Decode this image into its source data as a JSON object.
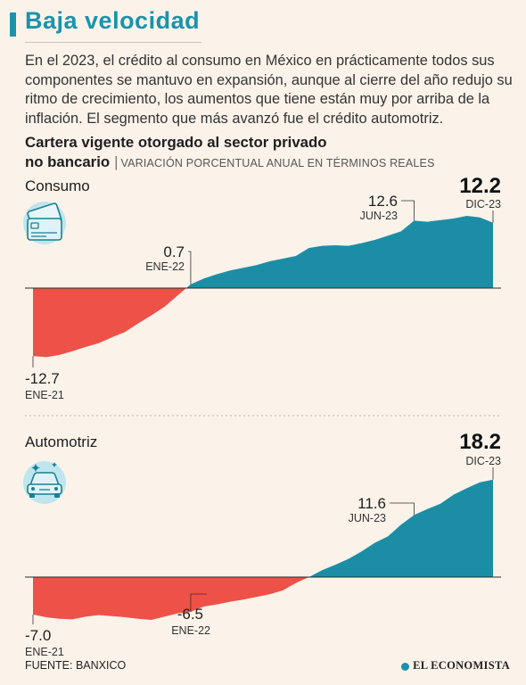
{
  "title": "Baja velocidad",
  "intro": "En el 2023, el crédito al consumo en México en prácticamente todos sus componentes se mantuvo en expansión, aunque al cierre del año redujo su ritmo de crecimiento, los aumentos que tiene están muy por arriba de la inflación. El segmento que más avanzó fue el crédito automotriz.",
  "subtitle_line1": "Cartera vigente otorgado al sector privado",
  "subtitle_line2": "no bancario",
  "subtitle_unit": "VARIACIÓN PORCENTUAL ANUAL EN TÉRMINOS REALES",
  "source": "FUENTE: BANXICO",
  "brand": "EL ECONOMISTA",
  "colors": {
    "positive": "#1b8ea5",
    "negative": "#ee5148",
    "accent": "#1a93ab",
    "background": "#fbf3ea"
  },
  "icons": {
    "consumo": "credit-card-icon",
    "automotriz": "car-icon"
  },
  "chart_data": [
    {
      "type": "area",
      "name": "Consumo",
      "x": [
        "ENE-21",
        "FEB-21",
        "MAR-21",
        "ABR-21",
        "MAY-21",
        "JUN-21",
        "JUL-21",
        "AGO-21",
        "SEP-21",
        "OCT-21",
        "NOV-21",
        "DIC-21",
        "ENE-22",
        "FEB-22",
        "MAR-22",
        "ABR-22",
        "MAY-22",
        "JUN-22",
        "JUL-22",
        "AGO-22",
        "SEP-22",
        "OCT-22",
        "NOV-22",
        "DIC-22",
        "ENE-23",
        "FEB-23",
        "MAR-23",
        "ABR-23",
        "MAY-23",
        "JUN-23",
        "JUL-23",
        "AGO-23",
        "SEP-23",
        "OCT-23",
        "NOV-23",
        "DIC-23"
      ],
      "values": [
        -12.7,
        -12.9,
        -12.5,
        -11.8,
        -11.0,
        -10.3,
        -9.2,
        -8.2,
        -6.6,
        -5.1,
        -3.5,
        -1.4,
        0.7,
        1.8,
        2.6,
        3.3,
        3.8,
        4.3,
        5.0,
        5.5,
        6.0,
        7.5,
        7.9,
        8.0,
        7.9,
        8.4,
        9.0,
        9.8,
        10.6,
        12.6,
        12.4,
        12.7,
        13.0,
        13.5,
        13.2,
        12.2
      ],
      "annotations": [
        {
          "x": "ENE-21",
          "value": "-12.7",
          "label": "ENE-21"
        },
        {
          "x": "ENE-22",
          "value": "0.7",
          "label": "ENE-22"
        },
        {
          "x": "JUN-23",
          "value": "12.6",
          "label": "JUN-23"
        },
        {
          "x": "DIC-23",
          "value": "12.2",
          "label": "DIC-23"
        }
      ]
    },
    {
      "type": "area",
      "name": "Automotriz",
      "x": [
        "ENE-21",
        "FEB-21",
        "MAR-21",
        "ABR-21",
        "MAY-21",
        "JUN-21",
        "JUL-21",
        "AGO-21",
        "SEP-21",
        "OCT-21",
        "NOV-21",
        "DIC-21",
        "ENE-22",
        "FEB-22",
        "MAR-22",
        "ABR-22",
        "MAY-22",
        "JUN-22",
        "JUL-22",
        "AGO-22",
        "SEP-22",
        "OCT-22",
        "NOV-22",
        "DIC-22",
        "ENE-23",
        "FEB-23",
        "MAR-23",
        "ABR-23",
        "MAY-23",
        "JUN-23",
        "JUL-23",
        "AGO-23",
        "SEP-23",
        "OCT-23",
        "NOV-23",
        "DIC-23"
      ],
      "values": [
        -7.0,
        -7.5,
        -7.8,
        -7.9,
        -7.4,
        -7.1,
        -7.3,
        -7.5,
        -7.8,
        -8.0,
        -7.4,
        -6.8,
        -6.5,
        -5.5,
        -5.1,
        -4.6,
        -4.2,
        -3.7,
        -3.2,
        -2.5,
        -1.1,
        0.0,
        1.3,
        2.3,
        3.4,
        4.8,
        6.4,
        7.6,
        9.8,
        11.6,
        12.7,
        13.7,
        15.4,
        16.6,
        17.7,
        18.2
      ],
      "annotations": [
        {
          "x": "ENE-21",
          "value": "-7.0",
          "label": "ENE-21"
        },
        {
          "x": "ENE-22",
          "value": "-6.5",
          "label": "ENE-22"
        },
        {
          "x": "JUN-23",
          "value": "11.6",
          "label": "JUN-23"
        },
        {
          "x": "DIC-23",
          "value": "18.2",
          "label": "DIC-23"
        }
      ]
    }
  ]
}
